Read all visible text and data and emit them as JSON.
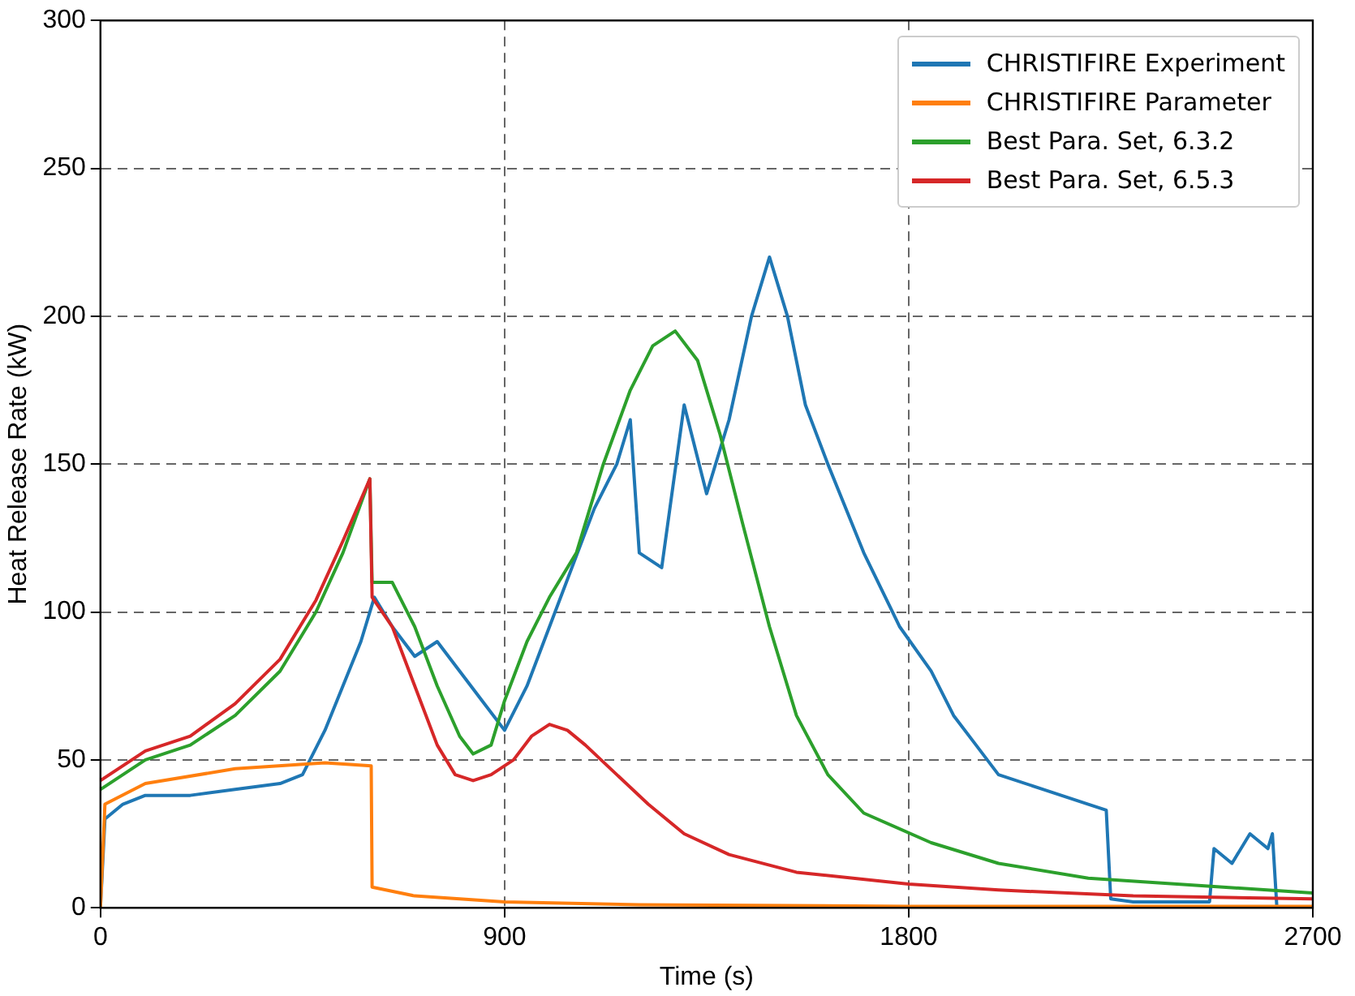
{
  "chart_data": {
    "type": "line",
    "xlabel": "Time (s)",
    "ylabel": "Heat Release Rate (kW)",
    "xlim": [
      0,
      2700
    ],
    "xticks": [
      0,
      900,
      1800,
      2700
    ],
    "ylim": [
      0,
      300
    ],
    "yticks": [
      0,
      50,
      100,
      150,
      200,
      250,
      300
    ],
    "grid": true,
    "legend": "top right",
    "marker": "none",
    "line_style": "solid",
    "series": [
      {
        "name": "CHRISTIFIRE Experiment",
        "color": "#1f77b4",
        "x": [
          0,
          10,
          50,
          100,
          200,
          300,
          400,
          450,
          500,
          540,
          580,
          610,
          650,
          700,
          750,
          800,
          850,
          900,
          950,
          1000,
          1050,
          1100,
          1150,
          1180,
          1200,
          1250,
          1300,
          1350,
          1400,
          1450,
          1490,
          1530,
          1570,
          1620,
          1700,
          1780,
          1850,
          1900,
          1950,
          2000,
          2100,
          2200,
          2240,
          2250,
          2300,
          2400,
          2470,
          2480,
          2520,
          2560,
          2600,
          2610,
          2620
        ],
        "values": [
          0,
          30,
          35,
          38,
          38,
          40,
          42,
          45,
          60,
          75,
          90,
          105,
          95,
          85,
          90,
          80,
          70,
          60,
          75,
          95,
          115,
          135,
          150,
          165,
          120,
          115,
          170,
          140,
          165,
          200,
          220,
          200,
          170,
          150,
          120,
          95,
          80,
          65,
          55,
          45,
          40,
          35,
          33,
          3,
          2,
          2,
          2,
          20,
          15,
          25,
          20,
          25,
          0
        ]
      },
      {
        "name": "CHRISTIFIRE Parameter",
        "color": "#ff7f0e",
        "x": [
          0,
          10,
          100,
          300,
          500,
          603,
          605,
          700,
          900,
          1200,
          1800,
          2700
        ],
        "values": [
          0,
          35,
          42,
          47,
          49,
          48,
          7,
          4,
          2,
          1,
          0.5,
          0.5
        ]
      },
      {
        "name": "Best Para. Set, 6.3.2",
        "color": "#2ca02c",
        "x": [
          0,
          100,
          200,
          300,
          400,
          480,
          540,
          600,
          605,
          650,
          700,
          750,
          800,
          830,
          870,
          900,
          950,
          1000,
          1060,
          1120,
          1180,
          1230,
          1280,
          1330,
          1380,
          1430,
          1490,
          1550,
          1620,
          1700,
          1850,
          2000,
          2200,
          2500,
          2700
        ],
        "values": [
          40,
          50,
          55,
          65,
          80,
          100,
          120,
          145,
          110,
          110,
          95,
          75,
          58,
          52,
          55,
          70,
          90,
          105,
          120,
          150,
          175,
          190,
          195,
          185,
          160,
          130,
          95,
          65,
          45,
          32,
          22,
          15,
          10,
          7,
          5
        ]
      },
      {
        "name": "Best Para. Set, 6.5.3",
        "color": "#d62728",
        "x": [
          0,
          100,
          200,
          300,
          400,
          480,
          540,
          600,
          605,
          650,
          700,
          750,
          790,
          830,
          870,
          920,
          960,
          1000,
          1040,
          1080,
          1150,
          1220,
          1300,
          1400,
          1550,
          1800,
          2000,
          2300,
          2700
        ],
        "values": [
          43,
          53,
          58,
          69,
          84,
          104,
          124,
          145,
          105,
          95,
          75,
          55,
          45,
          43,
          45,
          50,
          58,
          62,
          60,
          55,
          45,
          35,
          25,
          18,
          12,
          8,
          6,
          4,
          3
        ]
      }
    ]
  }
}
